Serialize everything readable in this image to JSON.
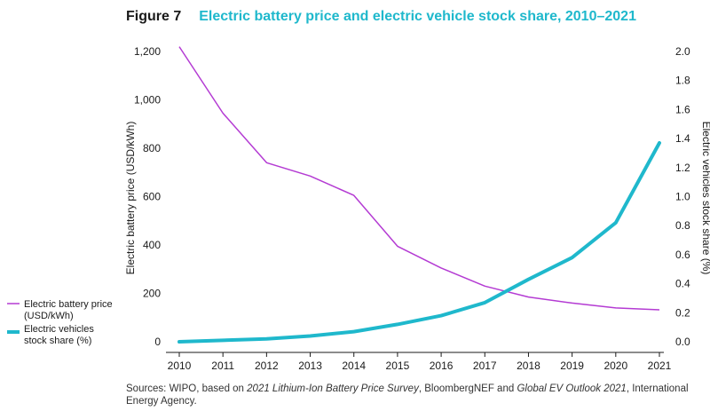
{
  "figure": {
    "label": "Figure 7",
    "title": "Electric battery price and electric vehicle stock share, 2010–2021"
  },
  "colors": {
    "battery_price": "#b43bd3",
    "ev_share": "#1fb8cc",
    "title": "#1fb8cc"
  },
  "legend": {
    "battery_line1": "Electric battery price",
    "battery_line2": "(USD/kWh)",
    "ev_line1": "Electric vehicles",
    "ev_line2": "stock share (%)"
  },
  "source": {
    "prefix": "Sources: WIPO, based on ",
    "italic1": "2021 Lithium-Ion Battery Price Survey",
    "middle": ", BloombergNEF and ",
    "italic2": "Global EV Outlook 2021",
    "suffix": ", International Energy Agency."
  },
  "chart_data": {
    "type": "line",
    "title": "Electric battery price and electric vehicle stock share, 2010–2021",
    "x": [
      2010,
      2011,
      2012,
      2013,
      2014,
      2015,
      2016,
      2017,
      2018,
      2019,
      2020,
      2021
    ],
    "x_tick_labels": [
      "2010",
      "2011",
      "2012",
      "2013",
      "2014",
      "2015",
      "2016",
      "2017",
      "2018",
      "2019",
      "2020",
      "2021"
    ],
    "y_left": {
      "label": "Electric battery price (USD/kWh)",
      "range": [
        0,
        1200
      ],
      "ticks": [
        0,
        200,
        400,
        600,
        800,
        1000,
        1200
      ],
      "tick_labels": [
        "0",
        "200",
        "400",
        "600",
        "800",
        "1,000",
        "1,200"
      ]
    },
    "y_right": {
      "label": "Electric vehicles stock share (%)",
      "range": [
        0,
        2.0
      ],
      "ticks": [
        0,
        0.2,
        0.4,
        0.6,
        0.8,
        1.0,
        1.2,
        1.4,
        1.6,
        1.8,
        2.0
      ],
      "tick_labels": [
        "0.0",
        "0.2",
        "0.4",
        "0.6",
        "0.8",
        "1.0",
        "1.2",
        "1.4",
        "1.6",
        "1.8",
        "2.0"
      ]
    },
    "series": [
      {
        "name": "Electric battery price (USD/kWh)",
        "axis": "left",
        "values": [
          1220,
          945,
          740,
          685,
          605,
          395,
          305,
          230,
          185,
          160,
          140,
          132
        ]
      },
      {
        "name": "Electric vehicles stock share (%)",
        "axis": "right",
        "values": [
          0.0,
          0.01,
          0.02,
          0.04,
          0.07,
          0.12,
          0.18,
          0.27,
          0.43,
          0.58,
          0.82,
          1.37
        ]
      }
    ],
    "grid": false,
    "legend_position": "left"
  }
}
